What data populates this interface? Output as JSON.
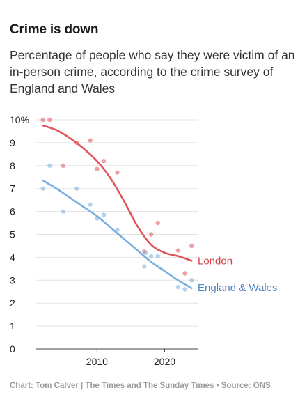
{
  "title": "Crime is down",
  "subtitle": "Percentage of people who say they were victim of an in-person crime, according to the crime survey of England and Wales",
  "footer": "Chart: Tom Calver | The Times and The Sunday Times • Source: ONS",
  "chart_data": {
    "type": "scatter",
    "title": "Crime is down",
    "xlim": [
      2001,
      2025
    ],
    "ylim": [
      0,
      10
    ],
    "x_ticks": [
      2010,
      2020
    ],
    "y_ticks": [
      0,
      1,
      2,
      3,
      4,
      5,
      6,
      7,
      8,
      9,
      10
    ],
    "y_tick_labels": [
      "0",
      "1",
      "2",
      "3",
      "4",
      "5",
      "6",
      "7",
      "8",
      "9",
      "10%"
    ],
    "grid": "horizontal",
    "legend": "direct labels at right end of lines",
    "series": [
      {
        "name": "London",
        "color": "#e0545a",
        "points": [
          [
            2002,
            10.0
          ],
          [
            2003,
            10.0
          ],
          [
            2005,
            8.0
          ],
          [
            2007,
            9.0
          ],
          [
            2009,
            9.1
          ],
          [
            2010,
            7.85
          ],
          [
            2011,
            8.2
          ],
          [
            2013,
            7.7
          ],
          [
            2017,
            4.25
          ],
          [
            2018,
            5.0
          ],
          [
            2019,
            5.5
          ],
          [
            2022,
            4.3
          ],
          [
            2023,
            3.3
          ],
          [
            2024,
            4.5
          ]
        ],
        "trend": [
          [
            2002,
            9.75
          ],
          [
            2004,
            9.55
          ],
          [
            2006,
            9.2
          ],
          [
            2008,
            8.75
          ],
          [
            2010,
            8.2
          ],
          [
            2012,
            7.45
          ],
          [
            2014,
            6.45
          ],
          [
            2016,
            5.35
          ],
          [
            2018,
            4.55
          ],
          [
            2020,
            4.2
          ],
          [
            2022,
            4.05
          ],
          [
            2024,
            3.85
          ]
        ]
      },
      {
        "name": "England & Wales",
        "color": "#7aaee0",
        "points": [
          [
            2002,
            7.0
          ],
          [
            2003,
            8.0
          ],
          [
            2005,
            6.0
          ],
          [
            2007,
            7.0
          ],
          [
            2009,
            6.3
          ],
          [
            2010,
            5.7
          ],
          [
            2011,
            5.85
          ],
          [
            2013,
            5.2
          ],
          [
            2017,
            3.6
          ],
          [
            2017.2,
            4.2
          ],
          [
            2018,
            4.05
          ],
          [
            2019,
            4.05
          ],
          [
            2022,
            2.7
          ],
          [
            2023,
            2.6
          ],
          [
            2024,
            3.0
          ]
        ],
        "trend": [
          [
            2002,
            7.35
          ],
          [
            2004,
            7.0
          ],
          [
            2006,
            6.6
          ],
          [
            2008,
            6.2
          ],
          [
            2010,
            5.8
          ],
          [
            2012,
            5.3
          ],
          [
            2014,
            4.8
          ],
          [
            2016,
            4.3
          ],
          [
            2018,
            3.8
          ],
          [
            2020,
            3.4
          ],
          [
            2022,
            3.0
          ],
          [
            2024,
            2.65
          ]
        ]
      }
    ]
  }
}
